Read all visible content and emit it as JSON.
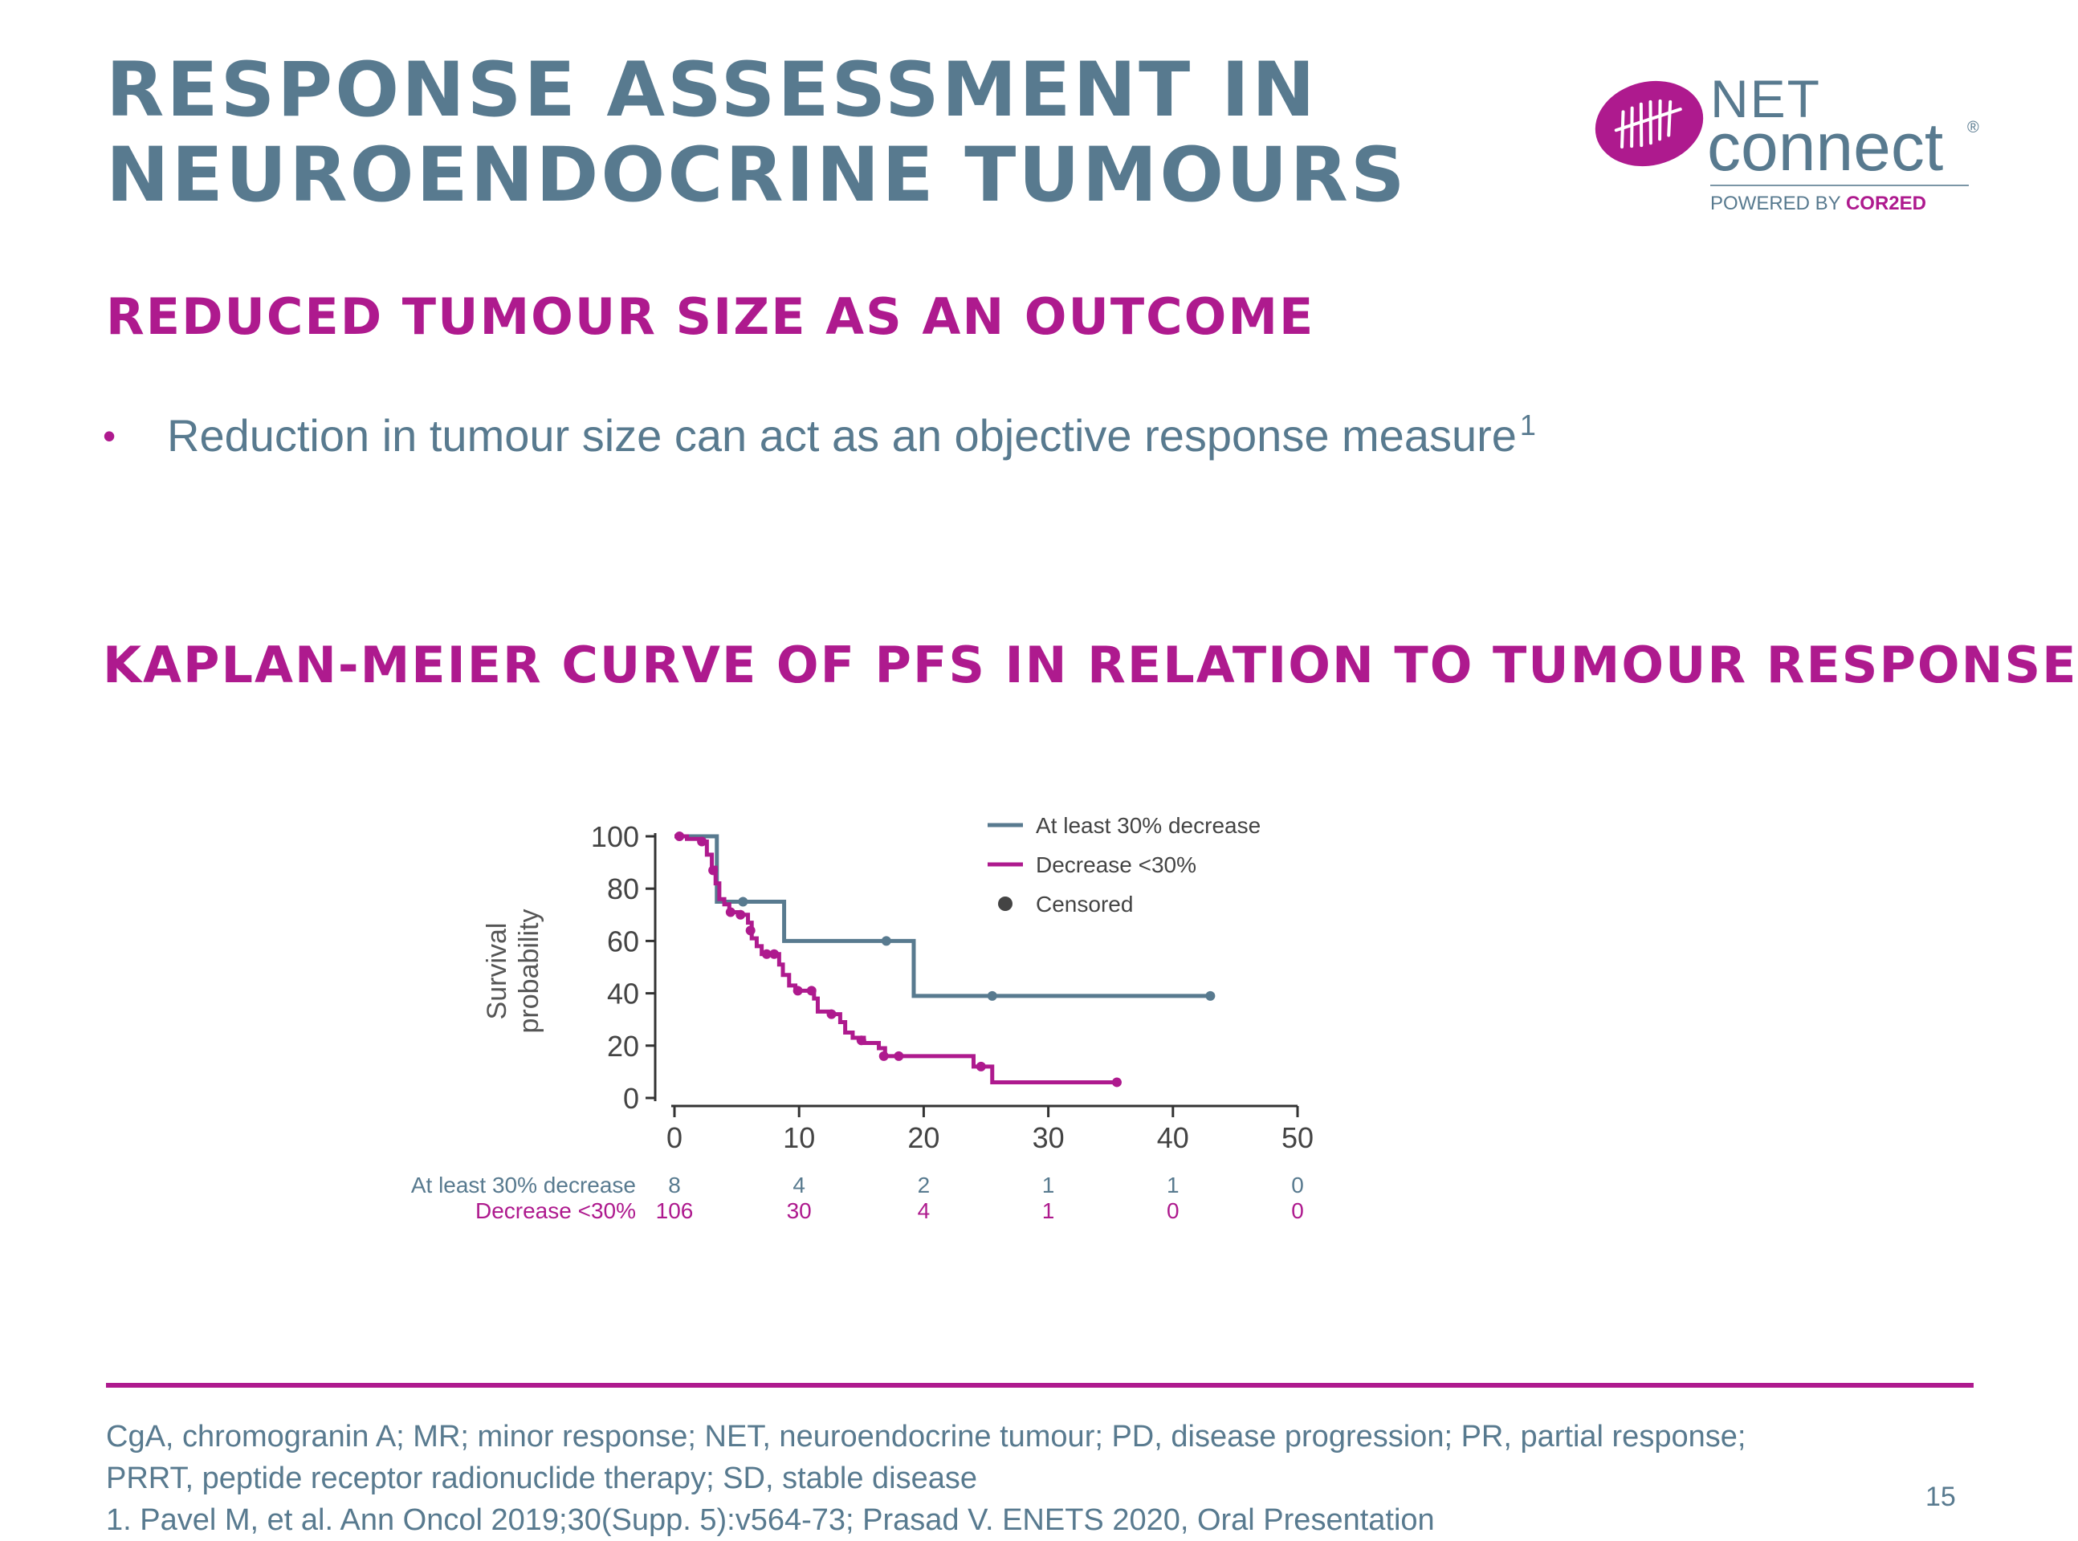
{
  "slide": {
    "title_line1": "RESPONSE ASSESSMENT IN",
    "title_line2": "NEUROENDOCRINE TUMOURS",
    "subtitle": "REDUCED TUMOUR SIZE AS AN OUTCOME",
    "bullet": {
      "text": "Reduction in tumour size can act as an objective response measure",
      "sup": "1"
    },
    "chart_heading": "KAPLAN-MEIER CURVE OF PFS IN RELATION TO TUMOUR RESPONSE",
    "page_number": "15"
  },
  "logo": {
    "top_word": "NET",
    "main_word": "connect",
    "registered": "®",
    "powered_prefix": "POWERED BY ",
    "powered_brand": "COR2ED"
  },
  "colors": {
    "title": "#587a8f",
    "accent": "#ae1a8e",
    "series_a": "#587a8f",
    "series_b": "#ae1a8e"
  },
  "chart_data": {
    "type": "line",
    "ylabel_line1": "Survival",
    "ylabel_line2": "probability",
    "xlabel": "",
    "xlim": [
      0,
      50
    ],
    "ylim": [
      0,
      100
    ],
    "x_ticks": [
      "0",
      "10",
      "20",
      "30",
      "40",
      "50"
    ],
    "y_ticks": [
      "0",
      "20",
      "40",
      "60",
      "80",
      "100"
    ],
    "legend_position": "top-right",
    "legend": [
      "At least 30% decrease",
      "Decrease <30%",
      "Censored"
    ],
    "series": [
      {
        "name": "At least 30% decrease",
        "color": "#587a8f",
        "steps": [
          [
            0,
            100
          ],
          [
            3.4,
            75
          ],
          [
            8.8,
            60
          ],
          [
            19.2,
            39
          ],
          [
            43,
            39
          ]
        ],
        "censored": [
          [
            5.5,
            75
          ],
          [
            17,
            60
          ],
          [
            25.5,
            39
          ],
          [
            43,
            39
          ]
        ]
      },
      {
        "name": "Decrease <30%",
        "color": "#ae1a8e",
        "steps": [
          [
            0,
            100
          ],
          [
            1,
            99
          ],
          [
            2,
            98
          ],
          [
            2.6,
            93
          ],
          [
            3,
            88
          ],
          [
            3.3,
            82
          ],
          [
            3.6,
            76
          ],
          [
            4,
            74
          ],
          [
            4.4,
            71
          ],
          [
            5.2,
            70
          ],
          [
            5.9,
            67
          ],
          [
            6.2,
            61
          ],
          [
            6.6,
            58
          ],
          [
            7,
            55
          ],
          [
            8.4,
            51
          ],
          [
            8.7,
            47
          ],
          [
            9.2,
            43
          ],
          [
            9.7,
            41
          ],
          [
            11.2,
            38
          ],
          [
            11.5,
            33
          ],
          [
            12.5,
            32
          ],
          [
            13.3,
            29
          ],
          [
            13.7,
            25
          ],
          [
            14.3,
            23
          ],
          [
            15.2,
            21
          ],
          [
            16.4,
            19
          ],
          [
            16.9,
            16
          ],
          [
            24,
            12
          ],
          [
            25.5,
            6
          ],
          [
            35.5,
            6
          ]
        ],
        "censored": [
          [
            0.4,
            100
          ],
          [
            2.2,
            98
          ],
          [
            3.1,
            87
          ],
          [
            4.5,
            71
          ],
          [
            5.3,
            70
          ],
          [
            6.1,
            64
          ],
          [
            7.4,
            55
          ],
          [
            8,
            55
          ],
          [
            9.9,
            41
          ],
          [
            11,
            41
          ],
          [
            12.6,
            32
          ],
          [
            15,
            22
          ],
          [
            16.8,
            16
          ],
          [
            18,
            16
          ],
          [
            24.6,
            12
          ],
          [
            35.5,
            6
          ]
        ]
      }
    ],
    "at_risk": {
      "x": [
        0,
        10,
        20,
        30,
        40,
        50
      ],
      "rows": [
        {
          "label": "At least 30% decrease",
          "values": [
            "8",
            "4",
            "2",
            "1",
            "1",
            "0"
          ],
          "color": "#587a8f"
        },
        {
          "label": "Decrease <30%",
          "values": [
            "106",
            "30",
            "4",
            "1",
            "0",
            "0"
          ],
          "color": "#ae1a8e"
        }
      ]
    }
  },
  "footnotes": {
    "line1": "CgA, chromogranin A; MR; minor response; NET, neuroendocrine tumour; PD, disease progression; PR, partial response;",
    "line2": "PRRT, peptide receptor radionuclide therapy; SD, stable disease",
    "line3": "1. Pavel M, et al. Ann Oncol 2019;30(Supp. 5):v564-73; Prasad V. ENETS 2020, Oral Presentation"
  }
}
